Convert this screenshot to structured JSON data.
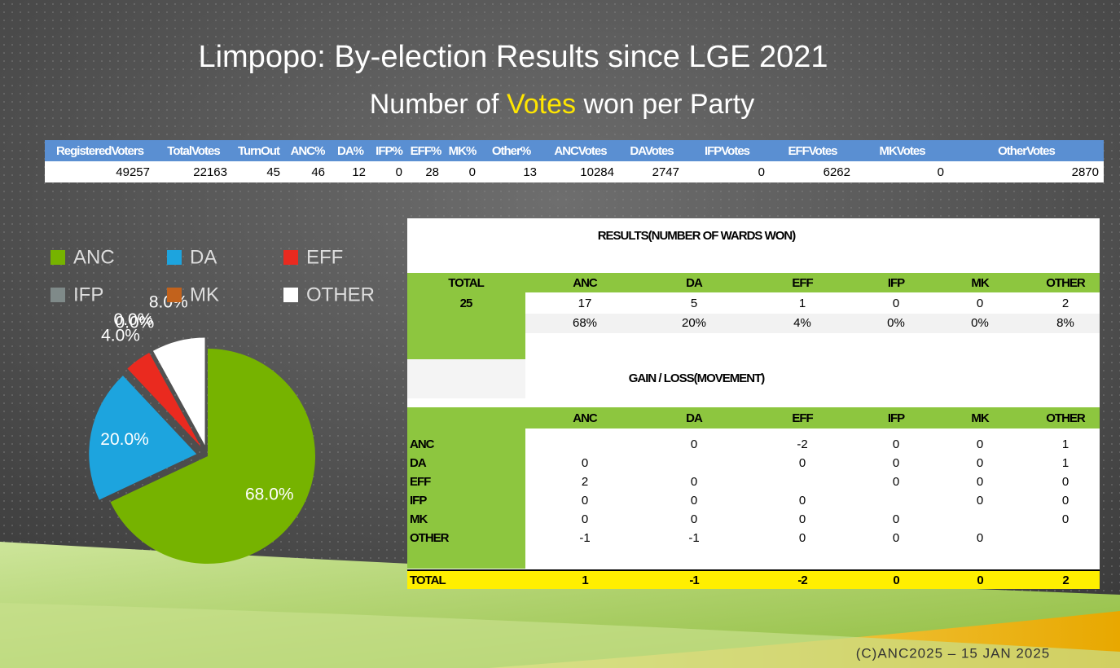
{
  "title": "Limpopo: By-election Results since LGE 2021",
  "subtitle": {
    "before": "Number of",
    "highlight": "Votes",
    "after": "won per Party"
  },
  "summary_table": {
    "headers": [
      "RegisteredVoters",
      "TotalVotes",
      "TurnOut",
      "ANC%",
      "DA%",
      "IFP%",
      "EFF%",
      "MK%",
      "Other%",
      "ANCVotes",
      "DAVotes",
      "IFPVotes",
      "EFFVotes",
      "MKVotes",
      "OtherVotes"
    ],
    "values": [
      49257,
      22163,
      45,
      46,
      12,
      0,
      28,
      0,
      13,
      10284,
      2747,
      0,
      6262,
      0,
      2870
    ]
  },
  "chart_data": {
    "type": "pie",
    "categories": [
      "ANC",
      "DA",
      "EFF",
      "IFP",
      "MK",
      "OTHER"
    ],
    "values": [
      68,
      20,
      4,
      0,
      0,
      8
    ],
    "value_labels": [
      "68.0%",
      "20.0%",
      "4.0%",
      "0.0%",
      "0.0%",
      "8.0%"
    ],
    "colors": [
      "#76b300",
      "#1da4de",
      "#ea2a1f",
      "#7f8a89",
      "#c2621c",
      "#ffffff"
    ],
    "legend": "top"
  },
  "results_table": {
    "title": "RESULTS(NUMBER OF WARDS WON)",
    "headers": [
      "TOTAL",
      "ANC",
      "DA",
      "EFF",
      "IFP",
      "MK",
      "OTHER"
    ],
    "total": 25,
    "counts": [
      17,
      5,
      1,
      0,
      0,
      2
    ],
    "percents": [
      "68%",
      "20%",
      "4%",
      "0%",
      "0%",
      "8%"
    ]
  },
  "movement_table": {
    "title": "GAIN / LOSS(MOVEMENT)",
    "headers": [
      "ANC",
      "DA",
      "EFF",
      "IFP",
      "MK",
      "OTHER"
    ],
    "rows": [
      {
        "label": "ANC",
        "values": [
          null,
          0,
          -2,
          0,
          0,
          1
        ]
      },
      {
        "label": "DA",
        "values": [
          0,
          null,
          0,
          0,
          0,
          1
        ]
      },
      {
        "label": "EFF",
        "values": [
          2,
          0,
          null,
          0,
          0,
          0
        ]
      },
      {
        "label": "IFP",
        "values": [
          0,
          0,
          0,
          null,
          0,
          0
        ]
      },
      {
        "label": "MK",
        "values": [
          0,
          0,
          0,
          0,
          null,
          0
        ]
      },
      {
        "label": "OTHER",
        "values": [
          -1,
          -1,
          0,
          0,
          0,
          null
        ]
      }
    ],
    "total": {
      "label": "TOTAL",
      "values": [
        1,
        -1,
        -2,
        0,
        0,
        2
      ]
    }
  },
  "footer": "(C)ANC2025 – 15 JAN 2025"
}
